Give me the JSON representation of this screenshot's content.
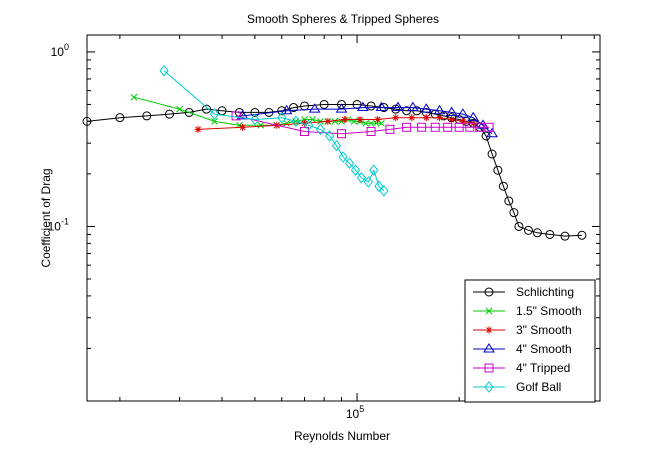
{
  "chart_data": {
    "type": "line",
    "title": "Smooth Spheres & Tripped Spheres",
    "xlabel": "Reynolds Number",
    "ylabel": "Coefficient of Drag",
    "x_scale": "log",
    "y_scale": "log",
    "xlim": [
      16000,
      520000
    ],
    "ylim": [
      0.01,
      1.25
    ],
    "x_ticks": [
      {
        "value": 100000,
        "label": "10^5"
      }
    ],
    "y_ticks": [
      {
        "value": 1,
        "label": "10^0"
      },
      {
        "value": 0.1,
        "label": "10^-1"
      }
    ],
    "grid": false,
    "legend_location": "bottom-right",
    "series": [
      {
        "name": "Schlichting",
        "color": "#000000",
        "marker": "circle",
        "x": [
          16000,
          20000,
          24000,
          28000,
          32000,
          36000,
          40000,
          45000,
          50000,
          55000,
          60000,
          65000,
          70000,
          80000,
          90000,
          100000,
          110000,
          120000,
          130000,
          140000,
          150000,
          160000,
          170000,
          180000,
          190000,
          200000,
          210000,
          220000,
          230000,
          240000,
          250000,
          260000,
          270000,
          280000,
          290000,
          300000,
          320000,
          340000,
          370000,
          410000,
          460000
        ],
        "y": [
          0.4,
          0.42,
          0.43,
          0.44,
          0.45,
          0.47,
          0.46,
          0.45,
          0.45,
          0.45,
          0.46,
          0.48,
          0.49,
          0.5,
          0.5,
          0.5,
          0.49,
          0.48,
          0.47,
          0.46,
          0.46,
          0.45,
          0.44,
          0.43,
          0.42,
          0.41,
          0.4,
          0.39,
          0.37,
          0.33,
          0.26,
          0.21,
          0.17,
          0.14,
          0.12,
          0.1,
          0.095,
          0.092,
          0.09,
          0.088,
          0.089
        ]
      },
      {
        "name": "1.5\" Smooth",
        "color": "#00cc00",
        "marker": "x",
        "x": [
          22000,
          30000,
          38000,
          45000,
          52000,
          58000,
          62000,
          66000,
          70000,
          74000,
          78000,
          82000,
          86000,
          90000,
          94000,
          98000,
          102000,
          106000,
          110000,
          114000,
          118000
        ],
        "y": [
          0.55,
          0.47,
          0.4,
          0.38,
          0.38,
          0.38,
          0.39,
          0.4,
          0.41,
          0.41,
          0.4,
          0.4,
          0.4,
          0.4,
          0.41,
          0.4,
          0.4,
          0.39,
          0.39,
          0.39,
          0.39
        ]
      },
      {
        "name": "3\" Smooth",
        "color": "#dd0000",
        "marker": "asterisk",
        "x": [
          34000,
          46000,
          58000,
          70000,
          82000,
          92000,
          102000,
          115000,
          130000,
          145000,
          160000,
          175000,
          190000,
          205000,
          220000
        ],
        "y": [
          0.36,
          0.37,
          0.38,
          0.39,
          0.4,
          0.41,
          0.41,
          0.41,
          0.42,
          0.42,
          0.42,
          0.42,
          0.41,
          0.4,
          0.39
        ]
      },
      {
        "name": "4\" Smooth",
        "color": "#0000cc",
        "marker": "triangle",
        "x": [
          46000,
          62000,
          75000,
          90000,
          104000,
          118000,
          132000,
          146000,
          160000,
          175000,
          190000,
          205000,
          220000,
          235000,
          250000
        ],
        "y": [
          0.43,
          0.46,
          0.47,
          0.47,
          0.48,
          0.48,
          0.48,
          0.48,
          0.47,
          0.46,
          0.45,
          0.44,
          0.42,
          0.38,
          0.34
        ]
      },
      {
        "name": "4\" Tripped",
        "color": "#cc00cc",
        "marker": "square",
        "x": [
          44000,
          70000,
          90000,
          110000,
          125000,
          140000,
          155000,
          170000,
          185000,
          200000,
          215000,
          230000,
          245000
        ],
        "y": [
          0.43,
          0.35,
          0.34,
          0.35,
          0.36,
          0.37,
          0.37,
          0.37,
          0.37,
          0.37,
          0.37,
          0.37,
          0.37
        ]
      },
      {
        "name": "Golf Ball",
        "color": "#00cccc",
        "marker": "diamond",
        "x": [
          27000,
          38000,
          50000,
          60000,
          66000,
          72000,
          78000,
          83000,
          87000,
          91000,
          95000,
          99000,
          103000,
          108000,
          112000,
          116000,
          120000
        ],
        "y": [
          0.78,
          0.44,
          0.41,
          0.42,
          0.4,
          0.38,
          0.36,
          0.33,
          0.29,
          0.25,
          0.23,
          0.21,
          0.19,
          0.18,
          0.21,
          0.17,
          0.16
        ]
      }
    ]
  }
}
